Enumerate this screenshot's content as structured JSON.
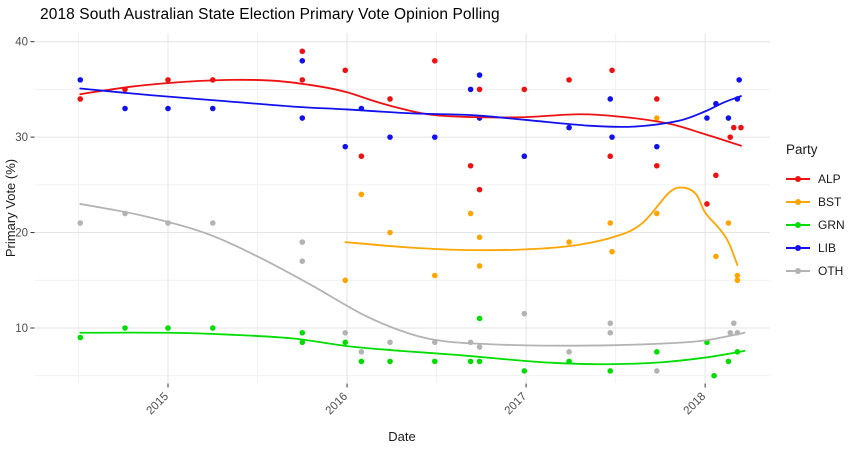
{
  "title": "2018 South Australian State Election Primary Vote Opinion Polling",
  "legend": {
    "title": "Party",
    "position": "right"
  },
  "axes": {
    "x": {
      "label": "Date",
      "tick_labels": [
        "2015",
        "2016",
        "2017",
        "2018"
      ],
      "tick_years": [
        2015,
        2016,
        2017,
        2018
      ],
      "minor_years": [
        2014.5,
        2015.5,
        2016.5,
        2017.5
      ],
      "domain": [
        2014.26,
        2018.36
      ]
    },
    "y": {
      "label": "Primary Vote (%)",
      "tick_labels": [
        "10",
        "20",
        "30",
        "40"
      ],
      "tick_values": [
        10,
        20,
        30,
        40
      ],
      "minor_values": [
        5,
        15,
        25,
        35
      ],
      "domain": [
        4.2,
        40.9
      ]
    }
  },
  "style": {
    "grid_major_color": "#e4e4e4",
    "grid_minor_color": "#f1f1f1",
    "tick_mark_color": "#333333",
    "background": "#ffffff"
  },
  "chart_data": {
    "type": "scatter",
    "title": "2018 South Australian State Election Primary Vote Opinion Polling",
    "xlabel": "Date",
    "ylabel": "Primary Vote (%)",
    "xlim": [
      2014.26,
      2018.36
    ],
    "ylim": [
      4.2,
      40.9
    ],
    "grid": true,
    "legend_position": "right",
    "notes": "points are individual polls; each series also has a loess-style smoothed trend line",
    "series": [
      {
        "name": "ALP",
        "color": "#ee1111",
        "points": [
          [
            2014.51,
            34
          ],
          [
            2014.76,
            35
          ],
          [
            2015.0,
            36
          ],
          [
            2015.25,
            36
          ],
          [
            2015.75,
            39
          ],
          [
            2015.75,
            36
          ],
          [
            2015.99,
            37
          ],
          [
            2016.08,
            28
          ],
          [
            2016.24,
            34
          ],
          [
            2016.49,
            38
          ],
          [
            2016.69,
            27
          ],
          [
            2016.74,
            35
          ],
          [
            2016.74,
            24.5
          ],
          [
            2016.99,
            35
          ],
          [
            2017.24,
            36
          ],
          [
            2017.47,
            28
          ],
          [
            2017.48,
            37
          ],
          [
            2017.73,
            34
          ],
          [
            2017.73,
            27
          ],
          [
            2018.01,
            23
          ],
          [
            2018.06,
            26
          ],
          [
            2018.14,
            30
          ],
          [
            2018.16,
            31
          ],
          [
            2018.2,
            31
          ]
        ],
        "trend": [
          [
            2014.51,
            34.5
          ],
          [
            2014.8,
            35.3
          ],
          [
            2015.1,
            35.8
          ],
          [
            2015.35,
            36.0
          ],
          [
            2015.6,
            35.9
          ],
          [
            2015.85,
            35.3
          ],
          [
            2016.0,
            34.7
          ],
          [
            2016.2,
            33.5
          ],
          [
            2016.45,
            32.4
          ],
          [
            2016.7,
            32.1
          ],
          [
            2017.0,
            32.1
          ],
          [
            2017.3,
            32.4
          ],
          [
            2017.55,
            32.1
          ],
          [
            2017.8,
            31.4
          ],
          [
            2018.0,
            30.3
          ],
          [
            2018.2,
            29.1
          ]
        ]
      },
      {
        "name": "BST",
        "color": "#ffa500",
        "points": [
          [
            2015.99,
            15
          ],
          [
            2016.08,
            24
          ],
          [
            2016.24,
            20
          ],
          [
            2016.49,
            15.5
          ],
          [
            2016.69,
            22
          ],
          [
            2016.74,
            19.5
          ],
          [
            2016.74,
            16.5
          ],
          [
            2017.24,
            19
          ],
          [
            2017.47,
            21
          ],
          [
            2017.48,
            18
          ],
          [
            2017.73,
            32
          ],
          [
            2017.73,
            22
          ],
          [
            2018.06,
            17.5
          ],
          [
            2018.13,
            21
          ],
          [
            2018.18,
            15.5
          ],
          [
            2018.18,
            15
          ]
        ],
        "trend": [
          [
            2015.99,
            19.0
          ],
          [
            2016.3,
            18.5
          ],
          [
            2016.6,
            18.2
          ],
          [
            2016.95,
            18.2
          ],
          [
            2017.25,
            18.6
          ],
          [
            2017.5,
            19.6
          ],
          [
            2017.65,
            21.0
          ],
          [
            2017.8,
            24.2
          ],
          [
            2017.88,
            24.7
          ],
          [
            2017.95,
            24.0
          ],
          [
            2018.0,
            22.1
          ],
          [
            2018.08,
            20.4
          ],
          [
            2018.13,
            19.0
          ],
          [
            2018.18,
            16.6
          ]
        ]
      },
      {
        "name": "GRN",
        "color": "#00dd00",
        "points": [
          [
            2014.51,
            9
          ],
          [
            2014.76,
            10
          ],
          [
            2015.0,
            10
          ],
          [
            2015.25,
            10
          ],
          [
            2015.75,
            9.5
          ],
          [
            2015.75,
            8.5
          ],
          [
            2015.99,
            8.5
          ],
          [
            2016.08,
            6.5
          ],
          [
            2016.24,
            6.5
          ],
          [
            2016.49,
            6.5
          ],
          [
            2016.69,
            6.5
          ],
          [
            2016.74,
            11
          ],
          [
            2016.74,
            6.5
          ],
          [
            2016.99,
            5.5
          ],
          [
            2017.24,
            6.5
          ],
          [
            2017.47,
            5.5
          ],
          [
            2017.73,
            7.5
          ],
          [
            2018.01,
            8.5
          ],
          [
            2018.05,
            5
          ],
          [
            2018.13,
            6.5
          ],
          [
            2018.18,
            7.5
          ]
        ],
        "trend": [
          [
            2014.51,
            9.5
          ],
          [
            2015.0,
            9.5
          ],
          [
            2015.35,
            9.3
          ],
          [
            2015.7,
            8.9
          ],
          [
            2016.0,
            8.1
          ],
          [
            2016.3,
            7.6
          ],
          [
            2016.6,
            7.2
          ],
          [
            2016.9,
            6.7
          ],
          [
            2017.15,
            6.35
          ],
          [
            2017.45,
            6.2
          ],
          [
            2017.75,
            6.4
          ],
          [
            2018.0,
            6.9
          ],
          [
            2018.22,
            7.6
          ]
        ]
      },
      {
        "name": "LIB",
        "color": "#1111ee",
        "points": [
          [
            2014.51,
            36
          ],
          [
            2014.76,
            33
          ],
          [
            2015.0,
            33
          ],
          [
            2015.25,
            33
          ],
          [
            2015.75,
            38
          ],
          [
            2015.75,
            32
          ],
          [
            2015.99,
            29
          ],
          [
            2016.08,
            33
          ],
          [
            2016.24,
            30
          ],
          [
            2016.49,
            30
          ],
          [
            2016.69,
            35
          ],
          [
            2016.74,
            36.5
          ],
          [
            2016.74,
            32
          ],
          [
            2016.99,
            28
          ],
          [
            2017.24,
            31
          ],
          [
            2017.47,
            34
          ],
          [
            2017.48,
            30
          ],
          [
            2017.73,
            29
          ],
          [
            2018.01,
            32
          ],
          [
            2018.06,
            33.5
          ],
          [
            2018.13,
            32
          ],
          [
            2018.18,
            34
          ],
          [
            2018.19,
            36
          ]
        ],
        "trend": [
          [
            2014.51,
            35.1
          ],
          [
            2014.9,
            34.4
          ],
          [
            2015.3,
            33.8
          ],
          [
            2015.7,
            33.2
          ],
          [
            2016.0,
            32.9
          ],
          [
            2016.35,
            32.5
          ],
          [
            2016.7,
            32.3
          ],
          [
            2017.0,
            31.8
          ],
          [
            2017.35,
            31.2
          ],
          [
            2017.6,
            31.1
          ],
          [
            2017.85,
            31.7
          ],
          [
            2018.0,
            32.7
          ],
          [
            2018.1,
            33.6
          ],
          [
            2018.2,
            34.3
          ]
        ]
      },
      {
        "name": "OTH",
        "color": "#b3b3b3",
        "points": [
          [
            2014.51,
            21
          ],
          [
            2014.76,
            22
          ],
          [
            2015.0,
            21
          ],
          [
            2015.25,
            21
          ],
          [
            2015.75,
            19
          ],
          [
            2015.75,
            17
          ],
          [
            2015.99,
            9.5
          ],
          [
            2016.08,
            7.5
          ],
          [
            2016.24,
            8.5
          ],
          [
            2016.49,
            8.5
          ],
          [
            2016.69,
            8.5
          ],
          [
            2016.74,
            8
          ],
          [
            2016.99,
            11.5
          ],
          [
            2017.24,
            7.5
          ],
          [
            2017.47,
            10.5
          ],
          [
            2017.47,
            9.5
          ],
          [
            2017.73,
            5.5
          ],
          [
            2018.14,
            9.5
          ],
          [
            2018.16,
            10.5
          ],
          [
            2018.18,
            9.5
          ]
        ],
        "trend": [
          [
            2014.51,
            23.0
          ],
          [
            2014.85,
            21.8
          ],
          [
            2015.2,
            20.0
          ],
          [
            2015.5,
            17.5
          ],
          [
            2015.8,
            14.5
          ],
          [
            2016.1,
            11.3
          ],
          [
            2016.35,
            9.4
          ],
          [
            2016.55,
            8.6
          ],
          [
            2016.8,
            8.3
          ],
          [
            2017.1,
            8.15
          ],
          [
            2017.5,
            8.2
          ],
          [
            2017.8,
            8.4
          ],
          [
            2018.0,
            8.7
          ],
          [
            2018.22,
            9.5
          ]
        ]
      }
    ]
  }
}
